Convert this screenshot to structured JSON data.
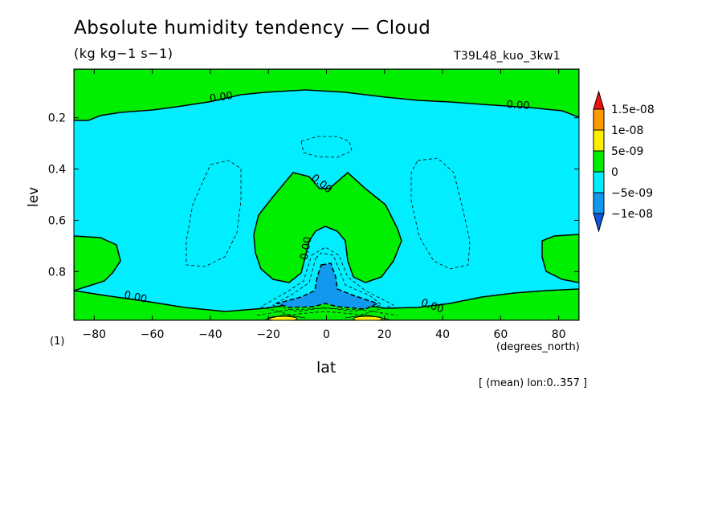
{
  "chart_data": {
    "type": "contour",
    "title": "Absolute humidity tendency — Cloud",
    "units": "(kg kg−1 s−1)",
    "experiment": "T39L48_kuo_3kw1",
    "xlabel": "lat",
    "xunits": "(degrees_north)",
    "ylabel": "lev",
    "y_position_note": "(1)",
    "footnote": "[ (mean) lon:0..357 ]",
    "xlim": [
      -87,
      87
    ],
    "ylim": [
      0.01,
      0.99
    ],
    "y_inverted": true,
    "x_ticks": [
      -80,
      -60,
      -40,
      -20,
      0,
      20,
      40,
      60,
      80
    ],
    "y_ticks": [
      0.2,
      0.4,
      0.6,
      0.8
    ],
    "contour_labels": [
      "0.00",
      "0.00",
      "0.00",
      "0.00",
      "0.00",
      "0.00"
    ],
    "colorbar": {
      "levels": [
        "1.5e-08",
        "1e-08",
        "5e-09",
        "0",
        "-5e-09",
        "-1e-08"
      ],
      "colors": [
        "#ee1111",
        "#ff9900",
        "#ffee00",
        "#00ee00",
        "#00eeff",
        "#1199ee",
        "#1155dd"
      ]
    },
    "fill_colors": {
      "positive": "#00ee00",
      "near_zero_negative": "#00eeff",
      "negative": "#1199ee",
      "strong_positive": "#ffee00"
    }
  }
}
